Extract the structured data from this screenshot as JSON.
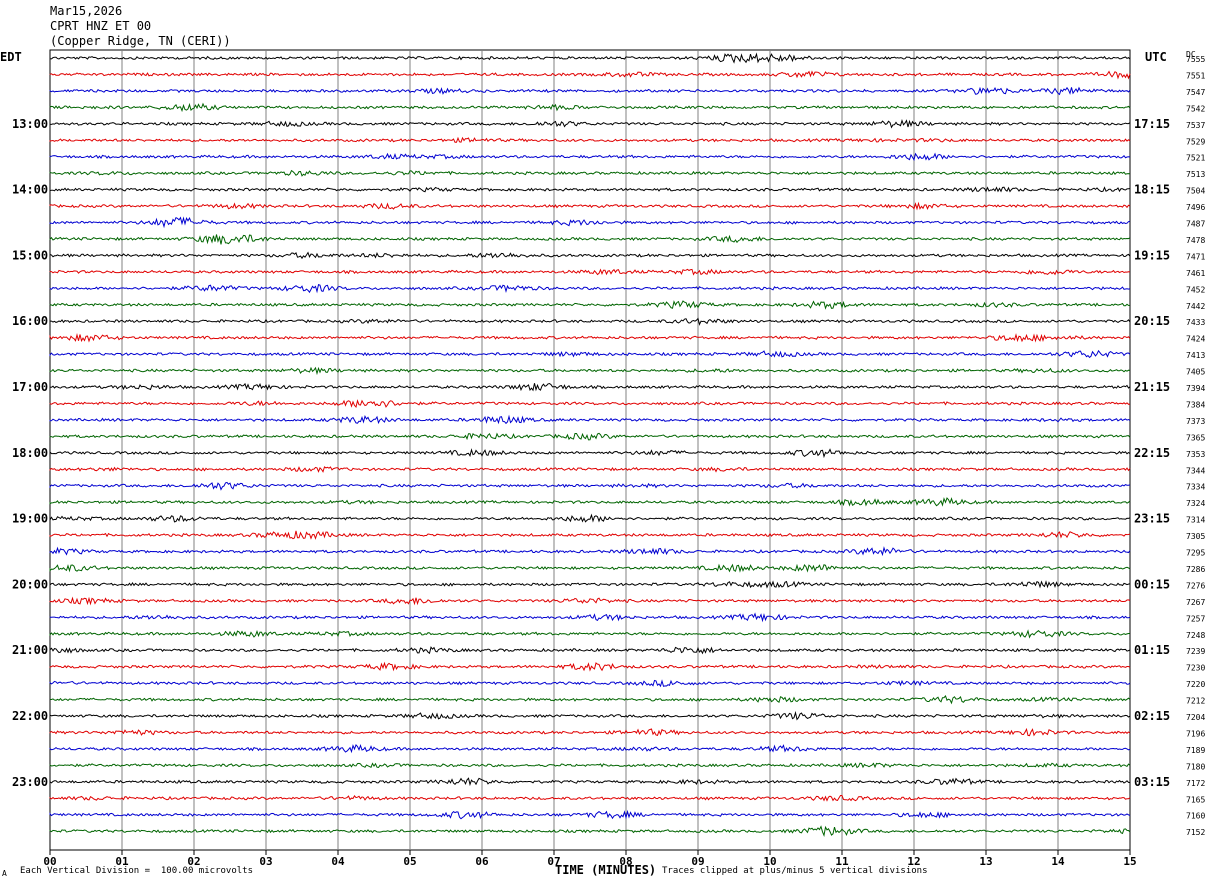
{
  "header": {
    "date": "Mar15,2026",
    "station": "CPRT HNZ ET 00",
    "location": "(Copper Ridge, TN (CERI))"
  },
  "left_tz": "EDT",
  "right_tz": "UTC",
  "dc_label": "DC",
  "footer": {
    "scale_note": "Each Vertical Division =  100.00 microvolts",
    "clip_note": "Traces clipped at plus/minus 5 vertical divisions",
    "corner_mark": "A"
  },
  "colors": {
    "black": "#000000",
    "red": "#e00000",
    "blue": "#0000d0",
    "green": "#006400",
    "grid": "#808080"
  },
  "chart_data": {
    "type": "line",
    "title": "",
    "xlabel": "TIME (MINUTES)",
    "ylabel": "",
    "xlim": [
      0,
      15
    ],
    "x_ticks": [
      "00",
      "01",
      "02",
      "03",
      "04",
      "05",
      "06",
      "07",
      "08",
      "09",
      "10",
      "11",
      "12",
      "13",
      "14",
      "15"
    ],
    "trace_colors": [
      "black",
      "red",
      "blue",
      "green"
    ],
    "trace_count": 48,
    "edt_labels": [
      "13:00",
      "14:00",
      "15:00",
      "16:00",
      "17:00",
      "18:00",
      "19:00",
      "20:00",
      "21:00",
      "22:00",
      "23:00"
    ],
    "utc_labels": [
      "17:15",
      "18:15",
      "19:15",
      "20:15",
      "21:15",
      "22:15",
      "23:15",
      "00:15",
      "01:15",
      "02:15",
      "03:15"
    ],
    "dc_offsets": [
      7555,
      7551,
      7547,
      7542,
      7537,
      7529,
      7521,
      7513,
      7504,
      7496,
      7487,
      7478,
      7471,
      7461,
      7452,
      7442,
      7433,
      7424,
      7413,
      7405,
      7394,
      7384,
      7373,
      7365,
      7353,
      7344,
      7334,
      7324,
      7314,
      7305,
      7295,
      7286,
      7276,
      7267,
      7257,
      7248,
      7239,
      7230,
      7220,
      7212,
      7204,
      7196,
      7189,
      7180,
      7172,
      7165,
      7160,
      7152
    ]
  }
}
